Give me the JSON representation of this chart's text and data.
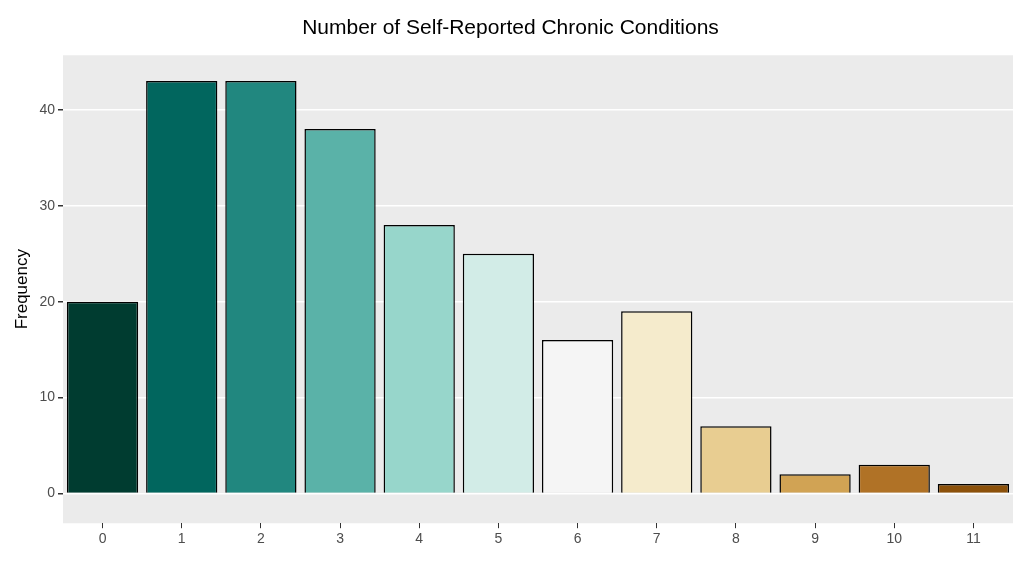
{
  "chart_data": {
    "type": "bar",
    "title": "Number of Self-Reported Chronic Conditions",
    "ylabel": "Frequency",
    "categories": [
      "0",
      "1",
      "2",
      "3",
      "4",
      "5",
      "6",
      "7",
      "8",
      "9",
      "10",
      "11"
    ],
    "values": [
      20,
      43,
      43,
      38,
      28,
      25,
      16,
      19,
      7,
      2,
      3,
      1
    ],
    "colors": [
      "#003c30",
      "#01665e",
      "#21877f",
      "#5ab2a8",
      "#97d6cb",
      "#d2ece7",
      "#f5f5f5",
      "#f5ebcc",
      "#e8cd91",
      "#d1a354",
      "#b07226",
      "#8c510a"
    ],
    "ylim": [
      -3.1,
      45.7
    ],
    "yticks": [
      0,
      10,
      20,
      30,
      40
    ],
    "grid": "y"
  }
}
